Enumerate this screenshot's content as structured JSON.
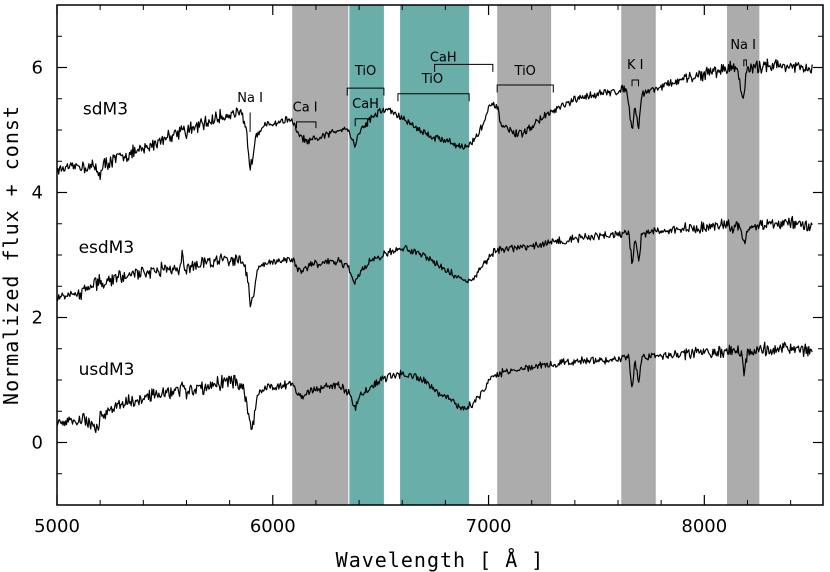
{
  "chart_data": {
    "type": "line",
    "title": "",
    "xlabel": "Wavelength [ Å ]",
    "ylabel": "Normalized flux + const",
    "xlim": [
      5000,
      8550
    ],
    "ylim": [
      -1.0,
      7.0
    ],
    "xticks": [
      5000,
      6000,
      7000,
      8000
    ],
    "xtick_labels": [
      "5000",
      "6000",
      "7000",
      "8000"
    ],
    "yticks": [
      0,
      2,
      4,
      6
    ],
    "ytick_labels": [
      "0",
      "2",
      "4",
      "6"
    ],
    "colors": {
      "gray_band": "#acacac",
      "teal_band": "#6aaeaa",
      "line": "#000000"
    },
    "bands": [
      {
        "name": "gray-band-1",
        "x0": 6090,
        "x1": 6350,
        "color": "gray"
      },
      {
        "name": "teal-band-1",
        "x0": 6355,
        "x1": 6515,
        "color": "teal"
      },
      {
        "name": "teal-band-2",
        "x0": 6590,
        "x1": 6910,
        "color": "teal"
      },
      {
        "name": "gray-band-2",
        "x0": 7040,
        "x1": 7290,
        "color": "gray"
      },
      {
        "name": "gray-band-3",
        "x0": 7615,
        "x1": 7775,
        "color": "gray"
      },
      {
        "name": "gray-band-4",
        "x0": 8105,
        "x1": 8255,
        "color": "gray"
      }
    ],
    "series": [
      {
        "name": "sdM3",
        "label_at": [
          5120,
          5.25
        ],
        "points": [
          [
            5000,
            4.36
          ],
          [
            5100,
            4.43
          ],
          [
            5180,
            4.4
          ],
          [
            5200,
            4.3
          ],
          [
            5220,
            4.45
          ],
          [
            5300,
            4.58
          ],
          [
            5400,
            4.68
          ],
          [
            5500,
            4.88
          ],
          [
            5570,
            4.98
          ],
          [
            5580,
            5.12
          ],
          [
            5590,
            4.96
          ],
          [
            5650,
            5.05
          ],
          [
            5750,
            5.2
          ],
          [
            5820,
            5.28
          ],
          [
            5860,
            5.2
          ],
          [
            5880,
            4.9
          ],
          [
            5895,
            4.45
          ],
          [
            5905,
            4.5
          ],
          [
            5920,
            4.92
          ],
          [
            5950,
            5.05
          ],
          [
            6000,
            5.1
          ],
          [
            6050,
            5.15
          ],
          [
            6080,
            5.18
          ],
          [
            6100,
            5.06
          ],
          [
            6120,
            4.92
          ],
          [
            6160,
            4.8
          ],
          [
            6200,
            4.85
          ],
          [
            6250,
            4.92
          ],
          [
            6300,
            5.0
          ],
          [
            6340,
            5.05
          ],
          [
            6360,
            4.92
          ],
          [
            6380,
            4.75
          ],
          [
            6400,
            4.96
          ],
          [
            6450,
            5.18
          ],
          [
            6500,
            5.3
          ],
          [
            6530,
            5.33
          ],
          [
            6560,
            5.28
          ],
          [
            6600,
            5.18
          ],
          [
            6650,
            5.08
          ],
          [
            6700,
            4.96
          ],
          [
            6750,
            4.88
          ],
          [
            6800,
            4.84
          ],
          [
            6850,
            4.76
          ],
          [
            6900,
            4.72
          ],
          [
            6950,
            4.92
          ],
          [
            6980,
            5.15
          ],
          [
            7000,
            5.33
          ],
          [
            7020,
            5.4
          ],
          [
            7040,
            5.36
          ],
          [
            7060,
            5.08
          ],
          [
            7100,
            4.98
          ],
          [
            7140,
            4.92
          ],
          [
            7180,
            5.0
          ],
          [
            7250,
            5.2
          ],
          [
            7300,
            5.3
          ],
          [
            7400,
            5.48
          ],
          [
            7500,
            5.58
          ],
          [
            7600,
            5.62
          ],
          [
            7640,
            5.68
          ],
          [
            7665,
            4.98
          ],
          [
            7680,
            5.4
          ],
          [
            7695,
            5.02
          ],
          [
            7710,
            5.58
          ],
          [
            7800,
            5.7
          ],
          [
            7900,
            5.8
          ],
          [
            8000,
            5.9
          ],
          [
            8100,
            5.98
          ],
          [
            8150,
            6.02
          ],
          [
            8175,
            5.6
          ],
          [
            8185,
            5.5
          ],
          [
            8195,
            5.96
          ],
          [
            8300,
            6.05
          ],
          [
            8400,
            6.02
          ],
          [
            8500,
            5.95
          ]
        ]
      },
      {
        "name": "esdM3",
        "label_at": [
          5100,
          3.03
        ],
        "points": [
          [
            5000,
            2.33
          ],
          [
            5100,
            2.38
          ],
          [
            5150,
            2.48
          ],
          [
            5200,
            2.58
          ],
          [
            5300,
            2.65
          ],
          [
            5400,
            2.72
          ],
          [
            5500,
            2.78
          ],
          [
            5570,
            2.8
          ],
          [
            5580,
            3.02
          ],
          [
            5590,
            2.8
          ],
          [
            5650,
            2.83
          ],
          [
            5750,
            2.92
          ],
          [
            5820,
            2.96
          ],
          [
            5860,
            2.92
          ],
          [
            5880,
            2.7
          ],
          [
            5895,
            2.25
          ],
          [
            5910,
            2.32
          ],
          [
            5930,
            2.78
          ],
          [
            5980,
            2.88
          ],
          [
            6050,
            2.92
          ],
          [
            6090,
            2.94
          ],
          [
            6110,
            2.82
          ],
          [
            6140,
            2.75
          ],
          [
            6160,
            2.82
          ],
          [
            6200,
            2.85
          ],
          [
            6250,
            2.88
          ],
          [
            6300,
            2.9
          ],
          [
            6350,
            2.8
          ],
          [
            6380,
            2.55
          ],
          [
            6400,
            2.72
          ],
          [
            6450,
            2.88
          ],
          [
            6500,
            2.98
          ],
          [
            6550,
            3.05
          ],
          [
            6600,
            3.1
          ],
          [
            6650,
            3.08
          ],
          [
            6700,
            3.0
          ],
          [
            6750,
            2.88
          ],
          [
            6800,
            2.76
          ],
          [
            6850,
            2.66
          ],
          [
            6900,
            2.58
          ],
          [
            6940,
            2.66
          ],
          [
            6970,
            2.8
          ],
          [
            7000,
            2.95
          ],
          [
            7020,
            3.02
          ],
          [
            7050,
            3.08
          ],
          [
            7100,
            3.1
          ],
          [
            7200,
            3.15
          ],
          [
            7300,
            3.2
          ],
          [
            7400,
            3.26
          ],
          [
            7500,
            3.3
          ],
          [
            7600,
            3.32
          ],
          [
            7650,
            3.35
          ],
          [
            7665,
            2.85
          ],
          [
            7680,
            3.25
          ],
          [
            7695,
            2.9
          ],
          [
            7710,
            3.35
          ],
          [
            7800,
            3.38
          ],
          [
            7900,
            3.42
          ],
          [
            8000,
            3.45
          ],
          [
            8100,
            3.48
          ],
          [
            8170,
            3.45
          ],
          [
            8185,
            3.1
          ],
          [
            8200,
            3.44
          ],
          [
            8300,
            3.5
          ],
          [
            8400,
            3.5
          ],
          [
            8500,
            3.48
          ]
        ]
      },
      {
        "name": "usdM3",
        "label_at": [
          5100,
          1.08
        ],
        "points": [
          [
            5000,
            0.32
          ],
          [
            5080,
            0.35
          ],
          [
            5100,
            0.3
          ],
          [
            5120,
            0.42
          ],
          [
            5160,
            0.28
          ],
          [
            5190,
            0.18
          ],
          [
            5200,
            0.4
          ],
          [
            5300,
            0.62
          ],
          [
            5400,
            0.72
          ],
          [
            5500,
            0.8
          ],
          [
            5570,
            0.82
          ],
          [
            5580,
            1.02
          ],
          [
            5590,
            0.8
          ],
          [
            5650,
            0.85
          ],
          [
            5750,
            0.95
          ],
          [
            5820,
            0.98
          ],
          [
            5860,
            0.9
          ],
          [
            5880,
            0.65
          ],
          [
            5895,
            0.22
          ],
          [
            5910,
            0.3
          ],
          [
            5930,
            0.78
          ],
          [
            5980,
            0.88
          ],
          [
            6050,
            0.92
          ],
          [
            6090,
            0.95
          ],
          [
            6110,
            0.8
          ],
          [
            6140,
            0.68
          ],
          [
            6160,
            0.8
          ],
          [
            6200,
            0.85
          ],
          [
            6250,
            0.9
          ],
          [
            6300,
            0.92
          ],
          [
            6350,
            0.8
          ],
          [
            6380,
            0.55
          ],
          [
            6400,
            0.72
          ],
          [
            6450,
            0.88
          ],
          [
            6500,
            1.0
          ],
          [
            6550,
            1.08
          ],
          [
            6600,
            1.1
          ],
          [
            6650,
            1.08
          ],
          [
            6700,
            0.98
          ],
          [
            6750,
            0.85
          ],
          [
            6800,
            0.72
          ],
          [
            6850,
            0.62
          ],
          [
            6880,
            0.55
          ],
          [
            6920,
            0.6
          ],
          [
            6960,
            0.75
          ],
          [
            7000,
            0.95
          ],
          [
            7020,
            1.05
          ],
          [
            7060,
            1.12
          ],
          [
            7100,
            1.15
          ],
          [
            7200,
            1.2
          ],
          [
            7300,
            1.25
          ],
          [
            7400,
            1.3
          ],
          [
            7500,
            1.32
          ],
          [
            7600,
            1.34
          ],
          [
            7650,
            1.36
          ],
          [
            7665,
            0.88
          ],
          [
            7680,
            1.3
          ],
          [
            7695,
            0.95
          ],
          [
            7710,
            1.36
          ],
          [
            7800,
            1.4
          ],
          [
            7900,
            1.42
          ],
          [
            8000,
            1.45
          ],
          [
            8100,
            1.46
          ],
          [
            8170,
            1.44
          ],
          [
            8185,
            1.12
          ],
          [
            8200,
            1.44
          ],
          [
            8300,
            1.5
          ],
          [
            8400,
            1.5
          ],
          [
            8500,
            1.46
          ]
        ]
      }
    ],
    "annotations": [
      {
        "text": "Na I",
        "x": 5895,
        "y": 5.45,
        "mark_x0": 5895,
        "mark_x1": 5895,
        "mark_y0": 5.28,
        "mark_y1": 4.97
      },
      {
        "text": "Ca I",
        "x": 6150,
        "y": 5.3,
        "mark_x0": 6110,
        "mark_x1": 6200,
        "mark_y0": 5.13,
        "mark_y1": 5.03
      },
      {
        "text": "TiO",
        "x": 6430,
        "y": 5.88,
        "mark_x0": 6345,
        "mark_x1": 6515,
        "mark_y0": 5.67,
        "mark_y1": 5.55
      },
      {
        "text": "CaH",
        "x": 6430,
        "y": 5.35,
        "mark_x0": 6382,
        "mark_x1": 6440,
        "mark_y0": 5.18,
        "mark_y1": 5.06
      },
      {
        "text": "CaH",
        "x": 6790,
        "y": 6.1,
        "mark_x0": 6750,
        "mark_x1": 7020,
        "mark_y0": 6.05,
        "mark_y1": 5.93
      },
      {
        "text": "TiO",
        "x": 6740,
        "y": 5.75,
        "mark_x0": 6580,
        "mark_x1": 6910,
        "mark_y0": 5.58,
        "mark_y1": 5.46
      },
      {
        "text": "TiO",
        "x": 7170,
        "y": 5.88,
        "mark_x0": 7040,
        "mark_x1": 7300,
        "mark_y0": 5.72,
        "mark_y1": 5.6
      },
      {
        "text": "K I",
        "x": 7680,
        "y": 5.98,
        "mark_x0": 7665,
        "mark_x1": 7695,
        "mark_y0": 5.8,
        "mark_y1": 5.7
      },
      {
        "text": "Na I",
        "x": 8180,
        "y": 6.3,
        "mark_x0": 8183,
        "mark_x1": 8195,
        "mark_y0": 6.12,
        "mark_y1": 6.02
      }
    ]
  }
}
